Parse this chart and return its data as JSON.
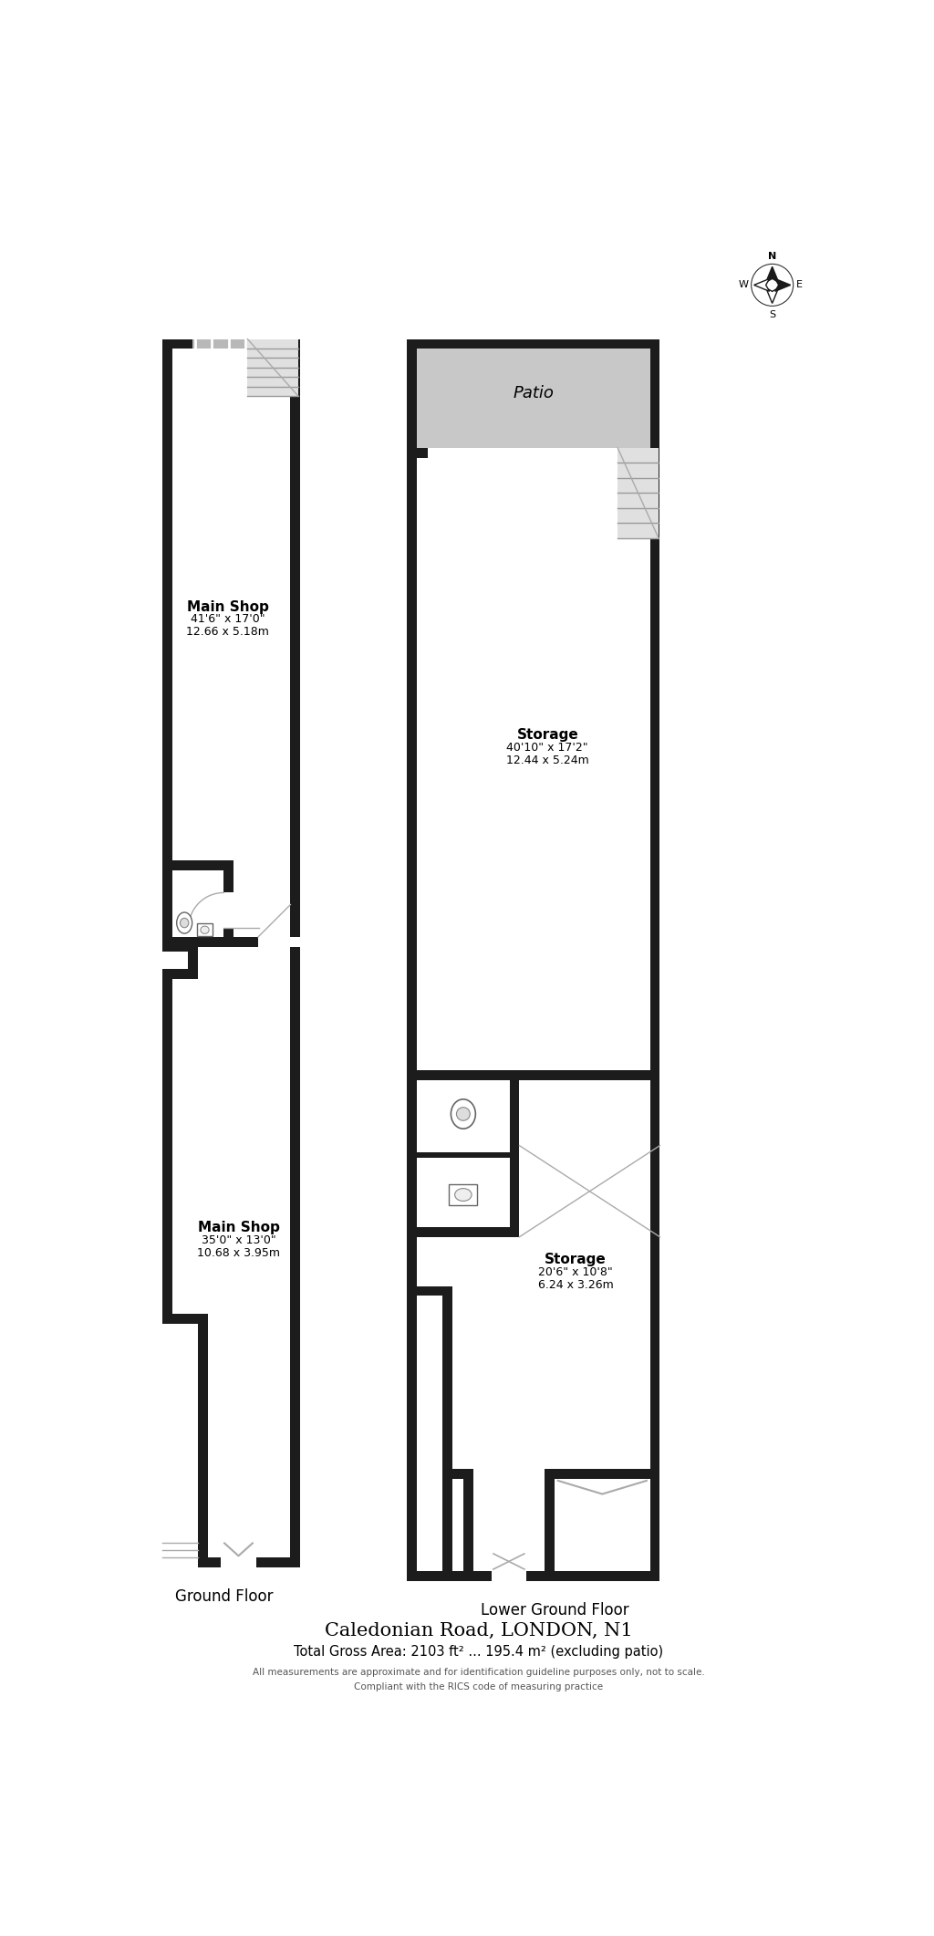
{
  "title": "Caledonian Road, LONDON, N1",
  "subtitle": "Total Gross Area: 2103 ft² ... 195.4 m² (excluding patio)",
  "footnote1": "All measurements are approximate and for identification guideline purposes only, not to scale.",
  "footnote2": "Compliant with the RICS code of measuring practice",
  "ground_floor_label": "Ground Floor",
  "lower_ground_label": "Lower Ground Floor",
  "bg_color": "#ffffff",
  "wall_color": "#1c1c1c",
  "patio_fill": "#c8c8c8",
  "rooms": [
    {
      "label": "Main Shop",
      "sub1": "41'6\" x 17'0\"",
      "sub2": "12.66 x 5.18m"
    },
    {
      "label": "Main Shop",
      "sub1": "35'0\" x 13'0\"",
      "sub2": "10.68 x 3.95m"
    },
    {
      "label": "Storage",
      "sub1": "40'10\" x 17'2\"",
      "sub2": "12.44 x 5.24m"
    },
    {
      "label": "Storage",
      "sub1": "20'6\" x 10'8\"",
      "sub2": "6.24 x 3.26m"
    },
    {
      "label": "Patio",
      "sub1": "",
      "sub2": ""
    }
  ]
}
